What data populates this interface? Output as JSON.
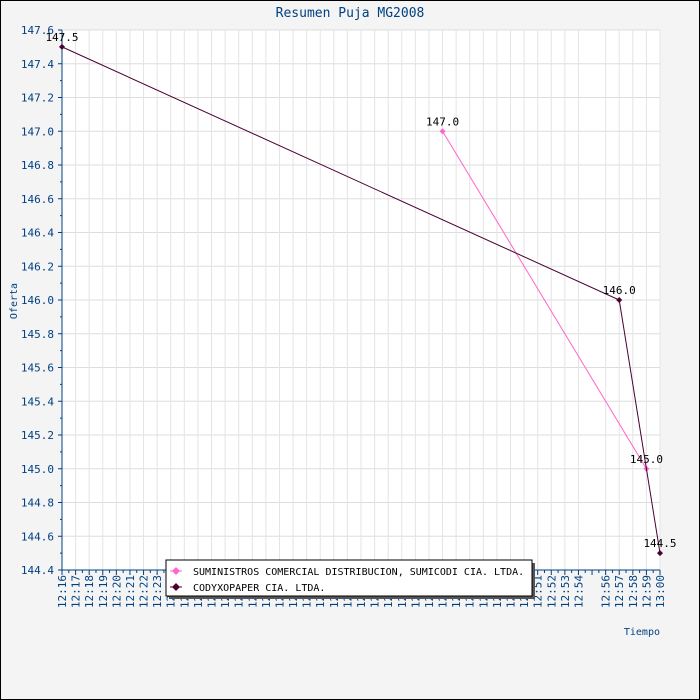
{
  "chart_data": {
    "type": "line",
    "title": "Resumen Puja MG2008",
    "xlabel": "Tiempo",
    "ylabel": "Oferta",
    "ylim": [
      144.4,
      147.6
    ],
    "yticks": [
      "144.4",
      "144.6",
      "144.8",
      "145.0",
      "145.2",
      "145.4",
      "145.6",
      "145.8",
      "146.0",
      "146.2",
      "146.4",
      "146.6",
      "146.8",
      "147.0",
      "147.2",
      "147.4",
      "147.6"
    ],
    "xticks": [
      "12:16",
      "12:17",
      "12:18",
      "12:19",
      "12:20",
      "12:21",
      "12:22",
      "12:23",
      "12:24",
      "12:25",
      "12:26",
      "12:27",
      "12:28",
      "12:29",
      "12:30",
      "12:31",
      "12:32",
      "12:33",
      "12:34",
      "12:35",
      "12:36",
      "12:37",
      "12:38",
      "12:39",
      "12:40",
      "12:41",
      "12:42",
      "12:43",
      "12:44",
      "12:45",
      "12:46",
      "12:47",
      "12:48",
      "12:49",
      "12:50",
      "12:51",
      "12:52",
      "12:53",
      "12:54",
      "12:56",
      "12:57",
      "12:58",
      "12:59",
      "13:00"
    ],
    "grid": true,
    "legend_position": "bottom",
    "series": [
      {
        "name": "SUMINISTROS COMERCIAL DISTRIBUCION, SUMICODI CIA. LTDA.",
        "color": "#ff66cc",
        "x": [
          "12:44",
          "12:59"
        ],
        "y": [
          147.0,
          145.0
        ],
        "labels": [
          "147.0",
          "145.0"
        ]
      },
      {
        "name": "CODYXOPAPER CIA. LTDA.",
        "color": "#4a0033",
        "x": [
          "12:16",
          "12:57",
          "13:00"
        ],
        "y": [
          147.5,
          146.0,
          144.5
        ],
        "labels": [
          "147.5",
          "146.0",
          "144.5"
        ]
      }
    ]
  }
}
